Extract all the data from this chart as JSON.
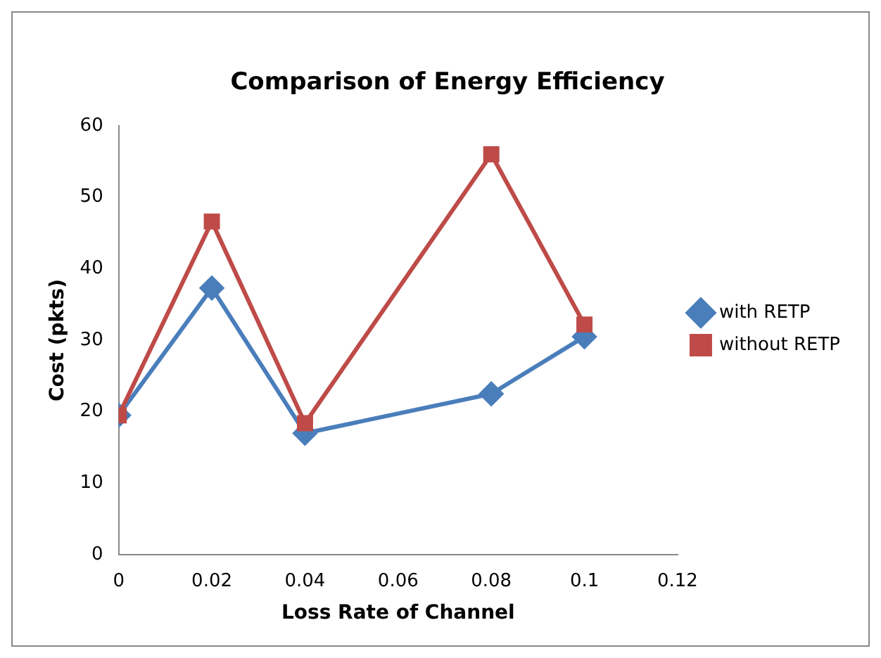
{
  "chart_data": {
    "type": "line",
    "title": "Comparison of Energy Efficiency",
    "xlabel": "Loss Rate of Channel",
    "ylabel": "Cost (pkts)",
    "x": [
      0,
      0.02,
      0.04,
      0.08,
      0.1
    ],
    "series": [
      {
        "name": "with RETP",
        "color": "#4a7ebb",
        "marker": "diamond",
        "values": [
          19.5,
          37.3,
          17,
          22.5,
          30.5
        ]
      },
      {
        "name": "without RETP",
        "color": "#be4b48",
        "marker": "square",
        "values": [
          19.5,
          46.6,
          18.4,
          56,
          32.2
        ]
      }
    ],
    "xlim": [
      0,
      0.12
    ],
    "xticks": [
      0,
      0.02,
      0.04,
      0.06,
      0.08,
      0.1,
      0.12
    ],
    "ylim": [
      0,
      60
    ],
    "yticks": [
      0,
      10,
      20,
      30,
      40,
      50,
      60
    ],
    "grid": false,
    "legend": "right",
    "line_style": "solid"
  }
}
